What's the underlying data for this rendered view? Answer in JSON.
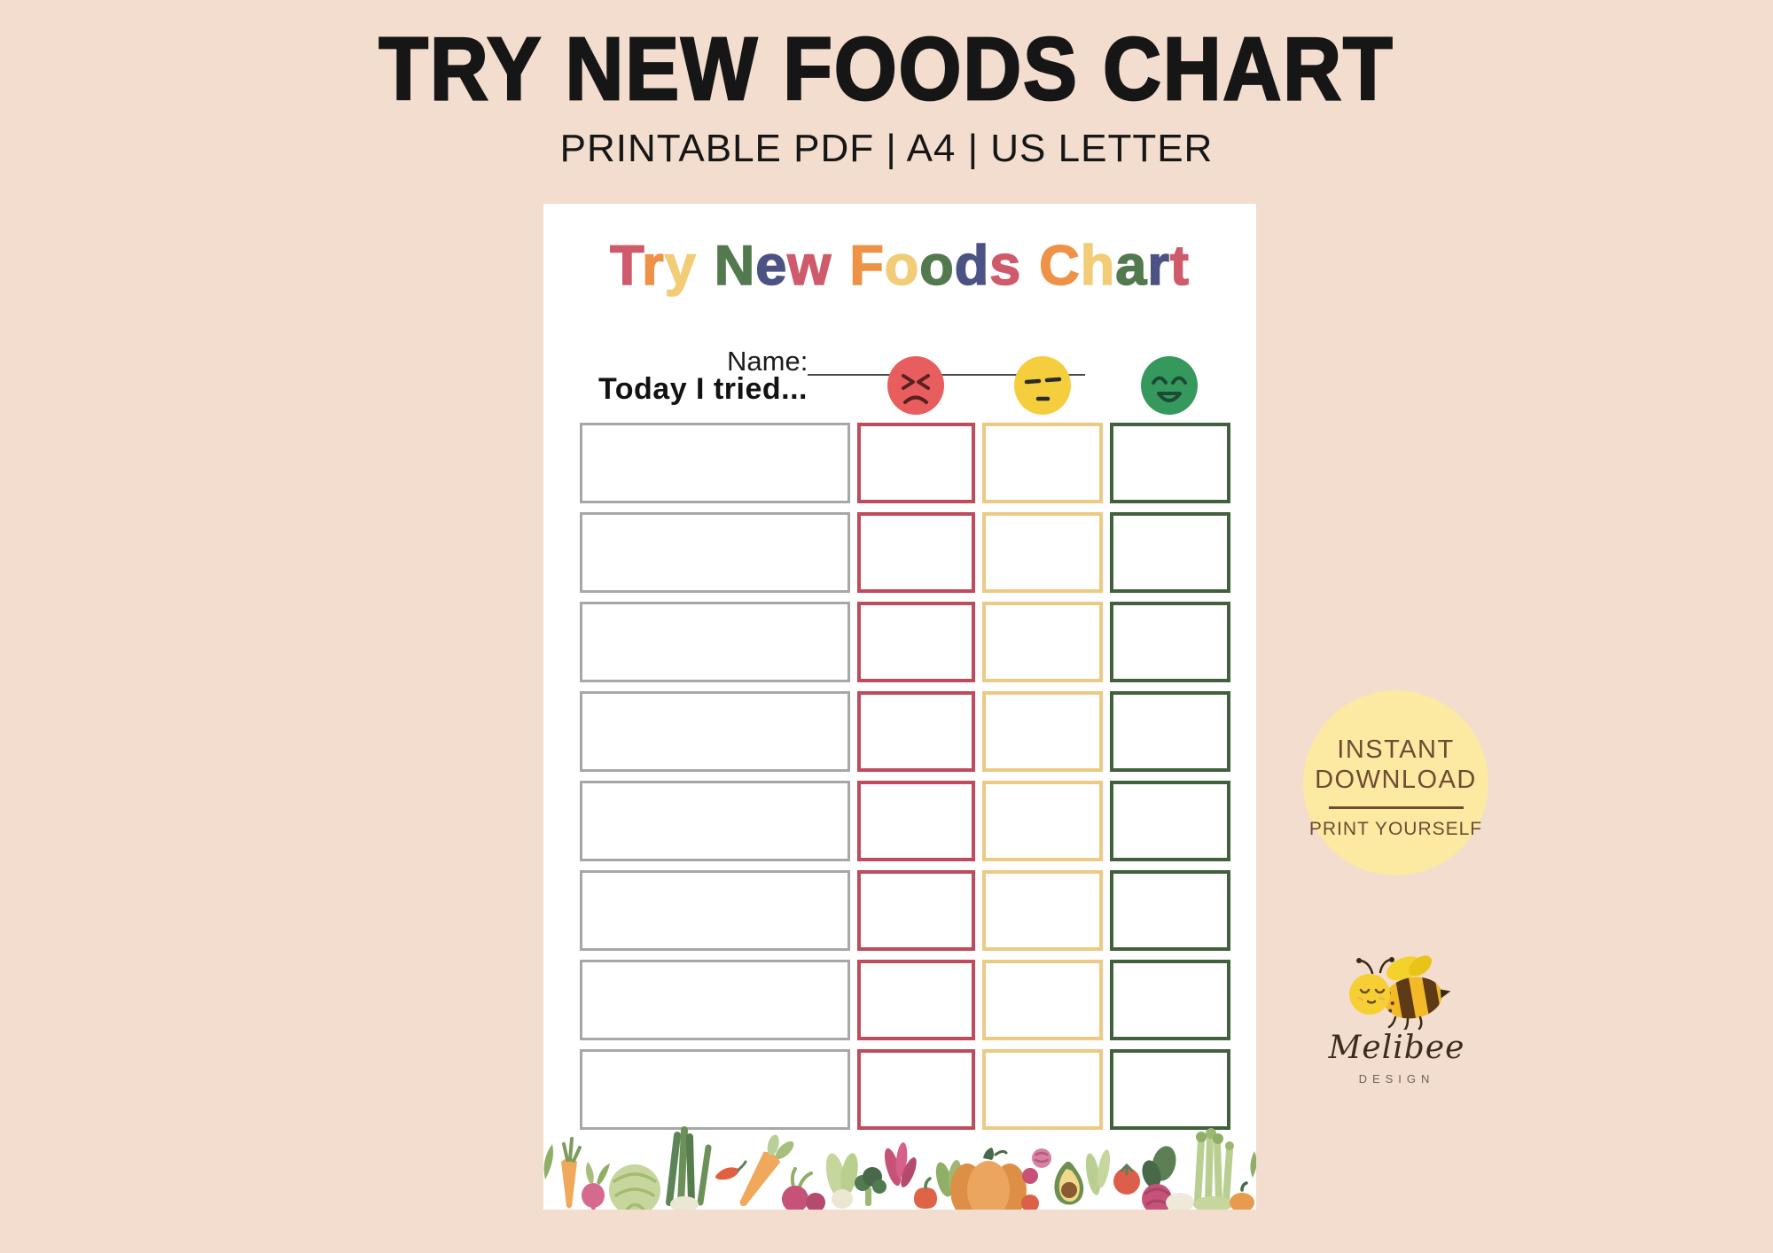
{
  "background_color": "#f2ddce",
  "header": {
    "title": "TRY NEW FOODS CHART",
    "subtitle": "PRINTABLE PDF | A4 | US LETTER",
    "text_color": "#161616"
  },
  "page": {
    "background": "#ffffff",
    "title_text": "Try New Foods Chart",
    "title_palette": [
      "#cf5a6b",
      "#ee9247",
      "#f2cc76",
      "#53794e",
      "#4c5284"
    ],
    "title_letters": [
      {
        "ch": "T",
        "color": "#cf5a6b"
      },
      {
        "ch": "r",
        "color": "#ee9247"
      },
      {
        "ch": "y",
        "color": "#f2cc76"
      },
      {
        "ch": " "
      },
      {
        "ch": "N",
        "color": "#53794e"
      },
      {
        "ch": "e",
        "color": "#4c5284"
      },
      {
        "ch": "w",
        "color": "#cf5a6b"
      },
      {
        "ch": " "
      },
      {
        "ch": "F",
        "color": "#ee9247"
      },
      {
        "ch": "o",
        "color": "#f2cc76"
      },
      {
        "ch": "o",
        "color": "#53794e"
      },
      {
        "ch": "d",
        "color": "#4c5284"
      },
      {
        "ch": "s",
        "color": "#cf5a6b"
      },
      {
        "ch": " "
      },
      {
        "ch": "C",
        "color": "#ee9247"
      },
      {
        "ch": "h",
        "color": "#f2cc76"
      },
      {
        "ch": "a",
        "color": "#53794e"
      },
      {
        "ch": "r",
        "color": "#4c5284"
      },
      {
        "ch": "t",
        "color": "#cf5a6b"
      }
    ],
    "name_label": "Name:",
    "prompt_label": "Today I tried...",
    "rating_faces": [
      {
        "name": "yuck-face",
        "mood": "disliked-it",
        "fill": "#e85e5e",
        "feature_color": "#5a2020"
      },
      {
        "name": "meh-face",
        "mood": "not-sure",
        "fill": "#f5ce3e",
        "feature_color": "#2b2b2b"
      },
      {
        "name": "yum-face",
        "mood": "liked-it",
        "fill": "#35995e",
        "feature_color": "#1d4a34"
      }
    ],
    "table": {
      "rows": 8,
      "columns": [
        {
          "key": "food",
          "name": "food-name",
          "border_color": "#a7a7a7"
        },
        {
          "key": "yuck",
          "name": "yuck-rating",
          "border_color": "#c04b5c"
        },
        {
          "key": "meh",
          "name": "meh-rating",
          "border_color": "#ecca84"
        },
        {
          "key": "yum",
          "name": "yum-rating",
          "border_color": "#41603c"
        }
      ],
      "cells_empty": true
    }
  },
  "badge": {
    "line1": "INSTANT",
    "line2": "DOWNLOAD",
    "line3": "PRINT YOURSELF",
    "background": "#fce9a2",
    "text_color": "#6f4b33"
  },
  "logo": {
    "brand": "Melibee",
    "subtitle": "DESIGN"
  }
}
